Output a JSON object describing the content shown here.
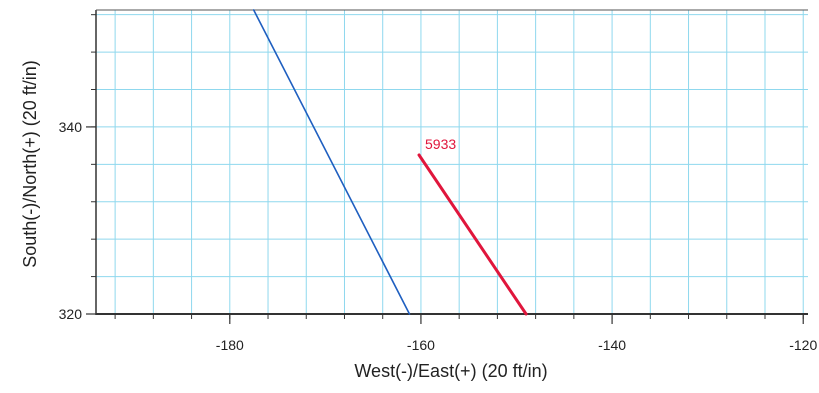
{
  "chart_data": {
    "type": "line",
    "title": "",
    "xlabel": "West(-)/East(+) (20 ft/in)",
    "ylabel": "South(-)/North(+) (20 ft/in)",
    "xlim": [
      -194,
      -119.5
    ],
    "ylim": [
      320,
      352.5
    ],
    "x_ticks": [
      -180,
      -160,
      -140,
      -120
    ],
    "y_ticks": [
      320,
      340
    ],
    "x_minor_step": 4,
    "y_minor_step": 4,
    "grid": true,
    "series": [
      {
        "name": "",
        "color": "#1f5fc0",
        "x": [
          -177.5,
          -161.2
        ],
        "y": [
          352.5,
          320
        ]
      },
      {
        "name": "5933",
        "color": "#e0163c",
        "x": [
          -160.2,
          -149.0
        ],
        "y": [
          337.0,
          320
        ]
      }
    ],
    "annotations": [
      {
        "text": "5933",
        "x": -160.2,
        "y": 337.0,
        "color": "#e0163c"
      }
    ]
  }
}
